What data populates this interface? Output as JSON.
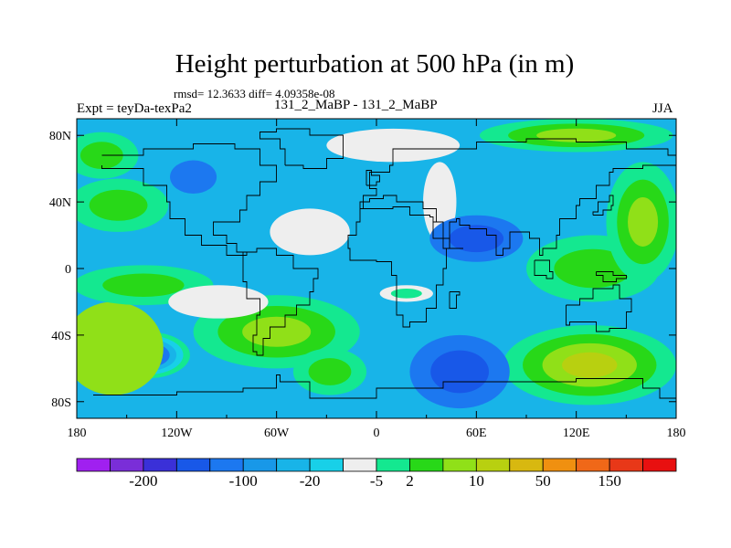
{
  "title": "Height perturbation at 500 hPa (in m)",
  "stats": "rmsd= 12.3633 diff= 4.09358e-08",
  "left_label": "Expt = teyDa-texPa2",
  "center_label": "131_2_MaBP - 131_2_MaBP",
  "right_label": "JJA",
  "map": {
    "projection": "cylindrical-equidistant",
    "lon_range": [
      -180,
      180
    ],
    "lat_range": [
      -90,
      90
    ],
    "x_ticks": [
      {
        "value": -180,
        "label": "180"
      },
      {
        "value": -120,
        "label": "120W"
      },
      {
        "value": -60,
        "label": "60W"
      },
      {
        "value": 0,
        "label": "0"
      },
      {
        "value": 60,
        "label": "60E"
      },
      {
        "value": 120,
        "label": "120E"
      },
      {
        "value": 180,
        "label": "180"
      }
    ],
    "y_ticks": [
      {
        "value": 80,
        "label": "80N"
      },
      {
        "value": 40,
        "label": "40N"
      },
      {
        "value": 0,
        "label": "0"
      },
      {
        "value": -40,
        "label": "40S"
      },
      {
        "value": -80,
        "label": "80S"
      }
    ],
    "background_level": "cyan",
    "features": [
      {
        "lon": -138,
        "lat": -52,
        "rx": 26,
        "ry": 14,
        "levels": [
          "green",
          "teal",
          "cyan",
          "blue",
          "royal",
          "navy"
        ]
      },
      {
        "lon": -158,
        "lat": -48,
        "rx": 30,
        "ry": 28,
        "levels": [
          "yellowgreen"
        ]
      },
      {
        "lon": -60,
        "lat": -38,
        "rx": 50,
        "ry": 22,
        "levels": [
          "green",
          "lime",
          "yellowgreen"
        ]
      },
      {
        "lon": -28,
        "lat": -62,
        "rx": 22,
        "ry": 14,
        "levels": [
          "green",
          "lime"
        ]
      },
      {
        "lon": 128,
        "lat": -58,
        "rx": 52,
        "ry": 24,
        "levels": [
          "green",
          "lime",
          "yellowgreen",
          "olive"
        ]
      },
      {
        "lon": 130,
        "lat": 0,
        "rx": 40,
        "ry": 20,
        "levels": [
          "green",
          "lime"
        ]
      },
      {
        "lon": 160,
        "lat": 28,
        "rx": 22,
        "ry": 36,
        "levels": [
          "green",
          "lime",
          "yellowgreen"
        ]
      },
      {
        "lon": -155,
        "lat": 38,
        "rx": 30,
        "ry": 16,
        "levels": [
          "green",
          "lime"
        ]
      },
      {
        "lon": -165,
        "lat": 68,
        "rx": 22,
        "ry": 14,
        "levels": [
          "green",
          "lime"
        ]
      },
      {
        "lon": 120,
        "lat": 80,
        "rx": 58,
        "ry": 10,
        "levels": [
          "green",
          "lime",
          "yellowgreen"
        ]
      },
      {
        "lon": -40,
        "lat": 22,
        "rx": 24,
        "ry": 14,
        "levels": [
          "white"
        ]
      },
      {
        "lon": 10,
        "lat": 74,
        "rx": 40,
        "ry": 10,
        "levels": [
          "white"
        ]
      },
      {
        "lon": 38,
        "lat": 40,
        "rx": 10,
        "ry": 24,
        "levels": [
          "white"
        ]
      },
      {
        "lon": 18,
        "lat": -15,
        "rx": 16,
        "ry": 5,
        "levels": [
          "white",
          "green"
        ]
      },
      {
        "lon": -140,
        "lat": -10,
        "rx": 42,
        "ry": 12,
        "levels": [
          "green",
          "lime"
        ]
      },
      {
        "lon": -110,
        "lat": 55,
        "rx": 14,
        "ry": 10,
        "levels": [
          "blue"
        ]
      },
      {
        "lon": 60,
        "lat": 18,
        "rx": 28,
        "ry": 14,
        "levels": [
          "blue",
          "royal"
        ]
      },
      {
        "lon": 50,
        "lat": -62,
        "rx": 30,
        "ry": 22,
        "levels": [
          "blue",
          "royal"
        ]
      },
      {
        "lon": -95,
        "lat": -20,
        "rx": 30,
        "ry": 10,
        "levels": [
          "white"
        ]
      }
    ]
  },
  "colorbar": {
    "colors": [
      "#a020f0",
      "#7a2ed8",
      "#3a30d8",
      "#1858e8",
      "#1c78f0",
      "#1898e8",
      "#18b4e8",
      "#18d0e8",
      "#eeeeee",
      "#14e890",
      "#28d818",
      "#90e018",
      "#b8d010",
      "#d8b810",
      "#f09010",
      "#f06818",
      "#e83818",
      "#e81010"
    ],
    "labels": [
      "-200",
      "-100",
      "-20",
      "-5",
      "2",
      "10",
      "50",
      "150"
    ],
    "label_after_box": [
      1,
      4,
      6,
      8,
      9,
      11,
      13,
      15
    ]
  },
  "level_colors": {
    "navy": "#3a30d8",
    "royal": "#1858e8",
    "blue": "#1c78f0",
    "cyan": "#18b4e8",
    "teal": "#18d0e8",
    "white": "#eeeeee",
    "green": "#14e890",
    "lime": "#28d818",
    "yellowgreen": "#90e018",
    "olive": "#b8d010"
  }
}
